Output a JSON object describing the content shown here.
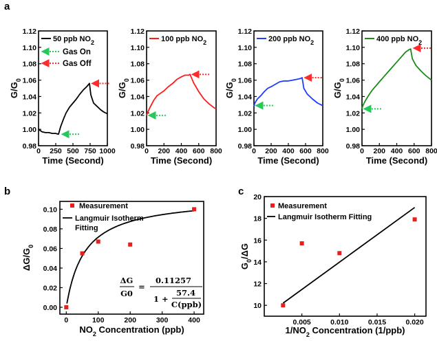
{
  "colors": {
    "green_arrow": "#27c85a",
    "red_arrow": "#ff2a2a",
    "measurement": "#e8201c",
    "fit": "#000000"
  },
  "panel_labels": {
    "a": "a",
    "b": "b",
    "c": "c"
  },
  "annotations": {
    "gas_on": "Gas On",
    "gas_off": "Gas Off"
  },
  "equation": {
    "lhs_num": "ΔG",
    "lhs_den": "G0",
    "eq": "=",
    "num": "0.11257",
    "one_plus": "1 +",
    "frac_num": "57.4",
    "frac_den": "C(ppb)"
  },
  "chart_data": [
    {
      "type": "line",
      "panel": "a1",
      "color": "#000000",
      "xlabel": "Time (Second)",
      "ylabel": "G/G0",
      "xlim": [
        0,
        1000
      ],
      "ylim": [
        0.98,
        1.12
      ],
      "xticks": [
        0,
        250,
        500,
        750,
        1000
      ],
      "yticks": [
        0.98,
        1.0,
        1.02,
        1.04,
        1.06,
        1.08,
        1.1,
        1.12
      ],
      "ytick_labels": [
        "0.98",
        "1.00",
        "1.02",
        "1.04",
        "1.06",
        "1.08",
        "1.10",
        "1.12"
      ],
      "series": [
        {
          "name": "50 ppb NO2",
          "x": [
            0,
            50,
            100,
            150,
            200,
            250,
            290,
            300,
            320,
            360,
            400,
            450,
            500,
            550,
            600,
            650,
            700,
            720,
            740,
            760,
            800,
            850,
            900,
            950,
            1000
          ],
          "y": [
            1.0,
            0.997,
            0.996,
            0.996,
            0.995,
            0.995,
            0.994,
            0.997,
            1.003,
            1.012,
            1.02,
            1.027,
            1.032,
            1.037,
            1.043,
            1.048,
            1.052,
            1.054,
            1.056,
            1.042,
            1.032,
            1.028,
            1.024,
            1.021,
            1.019
          ]
        }
      ],
      "gas_on": {
        "x": 330,
        "y": 0.994
      },
      "gas_off": {
        "x": 745,
        "y": 1.056
      }
    },
    {
      "type": "line",
      "panel": "a2",
      "color": "#ff1a1a",
      "xlabel": "Time (Second)",
      "ylabel": "G/G0",
      "xlim": [
        0,
        800
      ],
      "ylim": [
        0.98,
        1.12
      ],
      "xticks": [
        0,
        200,
        400,
        600,
        800
      ],
      "yticks": [
        0.98,
        1.0,
        1.02,
        1.04,
        1.06,
        1.08,
        1.1,
        1.12
      ],
      "ytick_labels": [
        "0.98",
        "1.00",
        "1.02",
        "1.04",
        "1.06",
        "1.08",
        "1.10",
        "1.12"
      ],
      "series": [
        {
          "name": "100 ppb NO2",
          "x": [
            0,
            10,
            40,
            80,
            120,
            160,
            200,
            250,
            300,
            350,
            400,
            440,
            480,
            500,
            540,
            600,
            660,
            720,
            780,
            800
          ],
          "y": [
            1.017,
            1.02,
            1.027,
            1.035,
            1.041,
            1.044,
            1.047,
            1.052,
            1.056,
            1.061,
            1.064,
            1.066,
            1.066,
            1.067,
            1.057,
            1.046,
            1.037,
            1.031,
            1.026,
            1.025
          ]
        }
      ],
      "gas_on": {
        "x": 15,
        "y": 1.017
      },
      "gas_off": {
        "x": 500,
        "y": 1.067
      }
    },
    {
      "type": "line",
      "panel": "a3",
      "color": "#1a3cff",
      "xlabel": "Time (Second)",
      "ylabel": "G/G0",
      "xlim": [
        0,
        800
      ],
      "ylim": [
        0.98,
        1.12
      ],
      "xticks": [
        0,
        200,
        400,
        600,
        800
      ],
      "yticks": [
        0.98,
        1.0,
        1.02,
        1.04,
        1.06,
        1.08,
        1.1,
        1.12
      ],
      "ytick_labels": [
        "0.98",
        "1.00",
        "1.02",
        "1.04",
        "1.06",
        "1.08",
        "1.10",
        "1.12"
      ],
      "series": [
        {
          "name": "200 ppb NO2",
          "x": [
            0,
            10,
            40,
            80,
            120,
            160,
            200,
            250,
            300,
            350,
            400,
            450,
            500,
            540,
            560,
            580,
            620,
            680,
            740,
            780,
            800
          ],
          "y": [
            1.028,
            1.032,
            1.037,
            1.041,
            1.046,
            1.05,
            1.052,
            1.055,
            1.058,
            1.059,
            1.059,
            1.06,
            1.061,
            1.062,
            1.063,
            1.05,
            1.043,
            1.037,
            1.032,
            1.03,
            1.029
          ]
        }
      ],
      "gas_on": {
        "x": 15,
        "y": 1.029
      },
      "gas_off": {
        "x": 565,
        "y": 1.063
      }
    },
    {
      "type": "line",
      "panel": "a4",
      "color": "#1a8a1a",
      "xlabel": "Time (Second)",
      "ylabel": "G/G0",
      "xlim": [
        0,
        800
      ],
      "ylim": [
        0.98,
        1.12
      ],
      "xticks": [
        0,
        200,
        400,
        600,
        800
      ],
      "yticks": [
        0.98,
        1.0,
        1.02,
        1.04,
        1.06,
        1.08,
        1.1,
        1.12
      ],
      "ytick_labels": [
        "0.98",
        "1.00",
        "1.02",
        "1.04",
        "1.06",
        "1.08",
        "1.10",
        "1.12"
      ],
      "series": [
        {
          "name": "400 ppb NO2",
          "x": [
            0,
            10,
            40,
            80,
            120,
            160,
            200,
            250,
            300,
            350,
            400,
            450,
            500,
            540,
            560,
            580,
            620,
            680,
            740,
            800
          ],
          "y": [
            1.025,
            1.029,
            1.035,
            1.042,
            1.048,
            1.053,
            1.058,
            1.064,
            1.07,
            1.076,
            1.082,
            1.088,
            1.094,
            1.097,
            1.098,
            1.086,
            1.078,
            1.071,
            1.065,
            1.06
          ]
        }
      ],
      "gas_on": {
        "x": 15,
        "y": 1.025
      },
      "gas_off": {
        "x": 570,
        "y": 1.099
      }
    },
    {
      "type": "scatter",
      "panel": "b",
      "xlabel": "NO2 Concentration (ppb)",
      "ylabel": "ΔG/G0",
      "xlim": [
        -20,
        430
      ],
      "ylim": [
        -0.007,
        0.108
      ],
      "xticks": [
        0,
        100,
        200,
        300,
        400
      ],
      "yticks": [
        0.0,
        0.02,
        0.04,
        0.06,
        0.08,
        0.1
      ],
      "ytick_labels": [
        "0.00",
        "0.02",
        "0.04",
        "0.06",
        "0.08",
        "0.10"
      ],
      "series": [
        {
          "name": "Measurement",
          "x": [
            0,
            50,
            100,
            200,
            400
          ],
          "y": [
            0.0,
            0.055,
            0.067,
            0.064,
            0.1
          ]
        },
        {
          "name": "Langmuir Isotherm Fitting",
          "model": "0.11257 / (1 + 57.4 / C)",
          "x_range": [
            2,
            400
          ]
        }
      ]
    },
    {
      "type": "scatter",
      "panel": "c",
      "xlabel": "1/NO2 Concentration (1/ppb)",
      "ylabel": "G0/ΔG",
      "xlim": [
        0.0,
        0.0215
      ],
      "ylim": [
        9,
        20
      ],
      "xticks": [
        0.005,
        0.01,
        0.015,
        0.02
      ],
      "xtick_labels": [
        "0.005",
        "0.010",
        "0.015",
        "0.020"
      ],
      "yticks": [
        10,
        12,
        14,
        16,
        18,
        20
      ],
      "series": [
        {
          "name": "Measurement",
          "x": [
            0.0025,
            0.005,
            0.01,
            0.02
          ],
          "y": [
            10.0,
            15.7,
            14.8,
            17.9
          ]
        },
        {
          "name": "Langmuir Isotherm Fitting",
          "x": [
            0.0025,
            0.02
          ],
          "y": [
            10.2,
            19.0
          ]
        }
      ]
    }
  ]
}
